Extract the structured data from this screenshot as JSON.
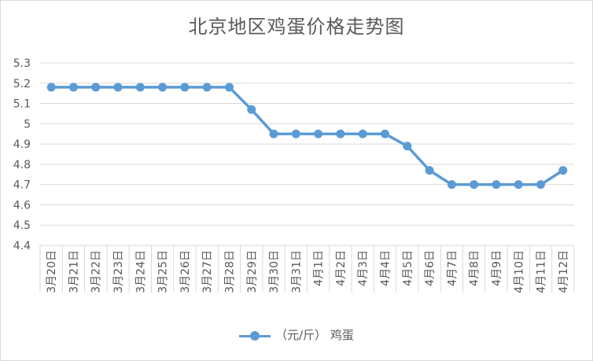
{
  "chart_data": {
    "type": "line",
    "title": "北京地区鸡蛋价格走势图",
    "categories": [
      "3月20日",
      "3月21日",
      "3月22日",
      "3月23日",
      "3月24日",
      "3月25日",
      "3月26日",
      "3月27日",
      "3月28日",
      "3月29日",
      "3月30日",
      "3月31日",
      "4月1日",
      "4月2日",
      "4月3日",
      "4月4日",
      "4月5日",
      "4月6日",
      "4月7日",
      "4月8日",
      "4月9日",
      "4月10日",
      "4月11日",
      "4月12日"
    ],
    "series": [
      {
        "name": "（元/斤） 鸡蛋",
        "color": "#5b9bd5",
        "values": [
          5.18,
          5.18,
          5.18,
          5.18,
          5.18,
          5.18,
          5.18,
          5.18,
          5.18,
          5.07,
          4.95,
          4.95,
          4.95,
          4.95,
          4.95,
          4.95,
          4.89,
          4.77,
          4.7,
          4.7,
          4.7,
          4.7,
          4.7,
          4.77
        ]
      }
    ],
    "ylim": [
      4.4,
      5.3
    ],
    "yticks": [
      "4.4",
      "4.5",
      "4.6",
      "4.7",
      "4.8",
      "4.9",
      "5",
      "5.1",
      "5.2",
      "5.3"
    ],
    "grid": true,
    "legend_position": "bottom"
  }
}
